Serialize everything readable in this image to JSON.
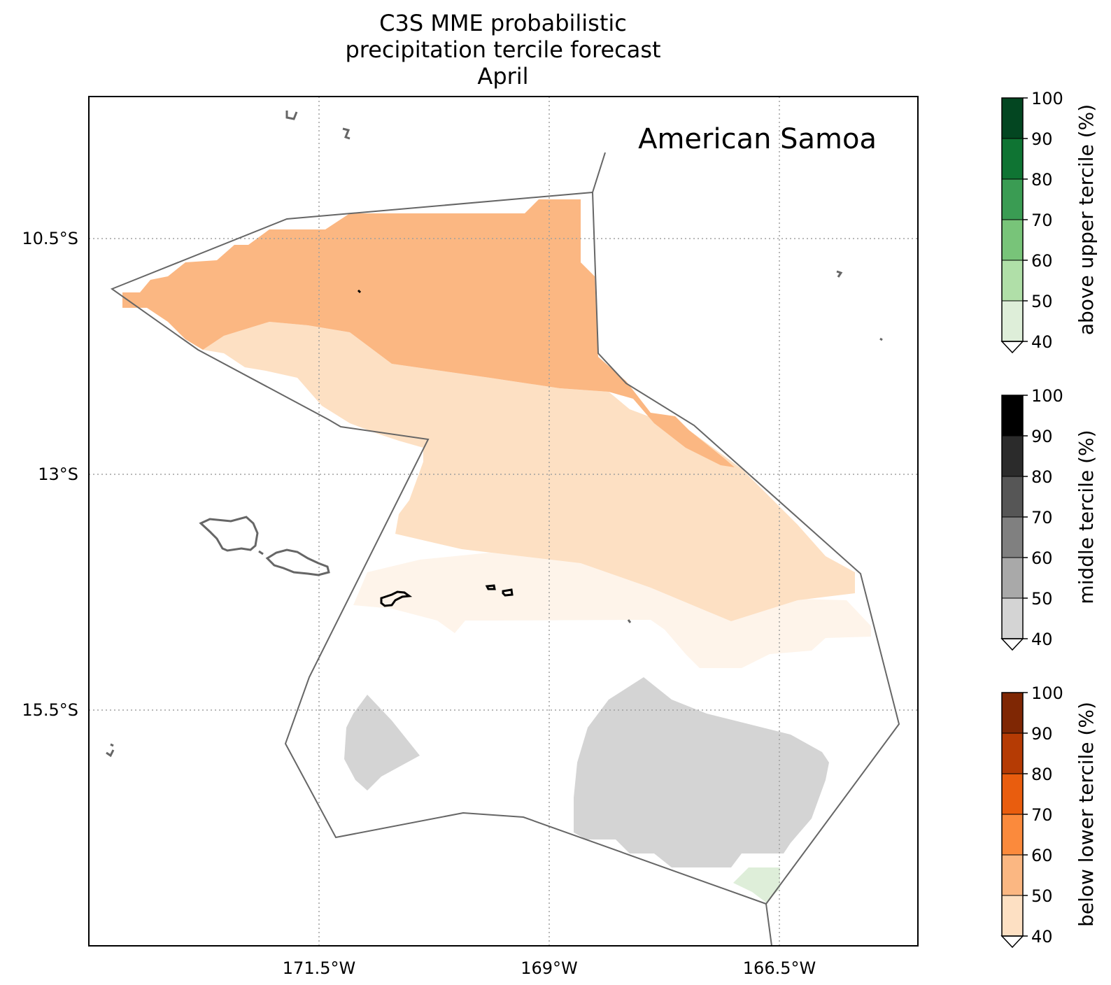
{
  "title": {
    "line1": "C3S MME probabilistic",
    "line2": "precipitation tercile forecast",
    "line3": "April"
  },
  "region_label": "American Samoa",
  "map": {
    "lon_ticks": [
      "171.5°W",
      "169°W",
      "166.5°W"
    ],
    "lat_ticks": [
      "10.5°S",
      "13°S",
      "15.5°S"
    ],
    "gridlines": "dotted",
    "outline_color": "#666666"
  },
  "colorbars": [
    {
      "label": "above upper tercile (%)",
      "ticks": [
        "100",
        "90",
        "80",
        "70",
        "60",
        "50",
        "40"
      ],
      "colors": [
        "#deeed9",
        "#b0dfa8",
        "#78c479",
        "#3a9c53",
        "#0f7433",
        "#034621"
      ],
      "extend_color": "#ffffff"
    },
    {
      "label": "middle tercile (%)",
      "ticks": [
        "100",
        "90",
        "80",
        "70",
        "60",
        "50",
        "40"
      ],
      "colors": [
        "#d4d4d4",
        "#a9a9a9",
        "#808080",
        "#565656",
        "#2b2b2b",
        "#000000"
      ],
      "extend_color": "#ffffff"
    },
    {
      "label": "below lower tercile (%)",
      "ticks": [
        "100",
        "90",
        "80",
        "70",
        "60",
        "50",
        "40"
      ],
      "colors": [
        "#fde0c3",
        "#fbb782",
        "#fb8a3c",
        "#e95d0e",
        "#b53b04",
        "#7f2704"
      ],
      "extend_color": "#ffffff"
    }
  ],
  "forecast_fill_colors": {
    "below_50_60": "#fbb782",
    "below_40_50": "#fde0c3",
    "below_light": "#fef4ea",
    "middle_40_50": "#d4d4d4",
    "above_40_50": "#deeed9"
  }
}
